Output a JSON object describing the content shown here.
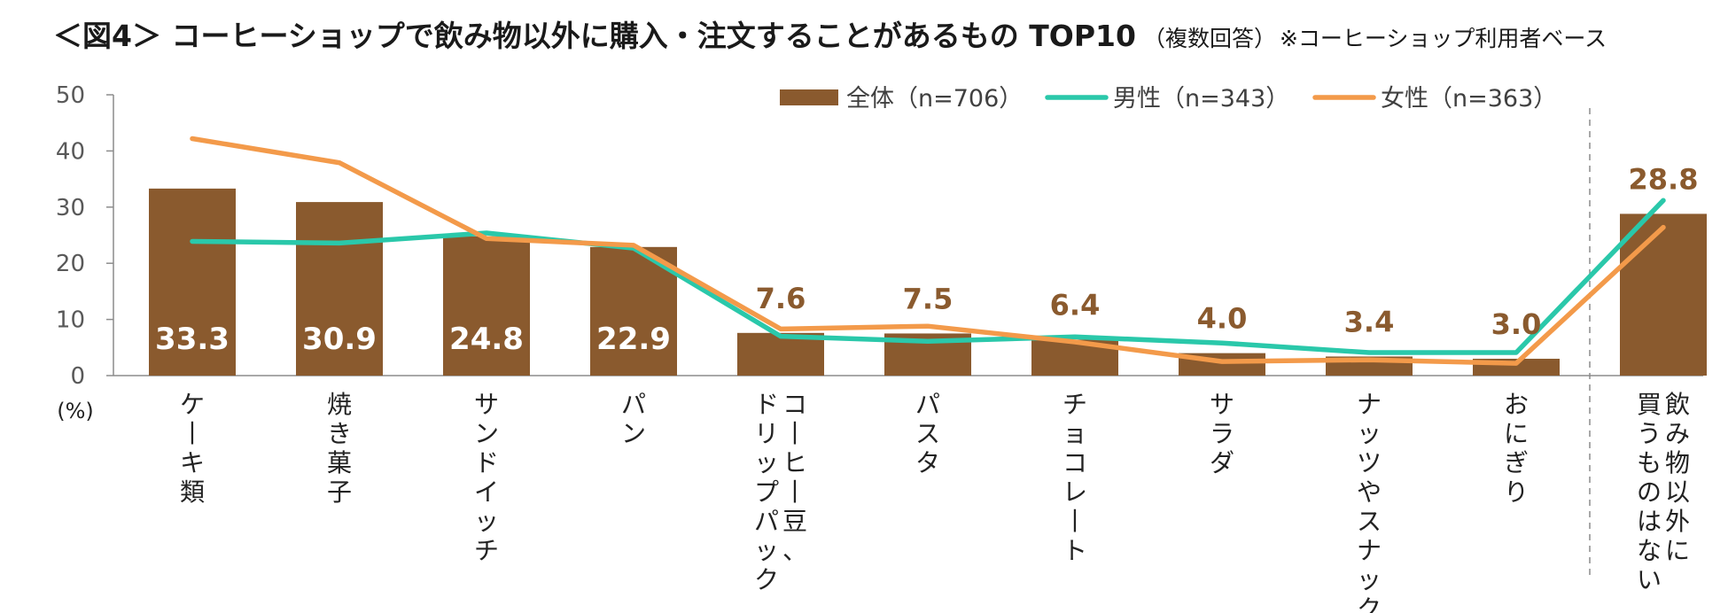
{
  "title": {
    "main": "＜図4＞ コーヒーショップで飲み物以外に購入・注文することがあるもの TOP10",
    "sub": "（複数回答）",
    "note": "※コーヒーショップ利用者ベース"
  },
  "colors": {
    "bar": "#8a5a2e",
    "male": "#2ac8aa",
    "female": "#f39a4a",
    "axis": "#8c8c8c"
  },
  "chart_data": {
    "type": "bar",
    "title": "＜図4＞ コーヒーショップで飲み物以外に購入・注文することがあるもの TOP10",
    "ylabel": "(%)",
    "ylim": [
      0,
      50
    ],
    "yticks": [
      0,
      10,
      20,
      30,
      40,
      50
    ],
    "categories": [
      [
        "ケーキ類"
      ],
      [
        "焼き菓子"
      ],
      [
        "サンドイッチ"
      ],
      [
        "パン"
      ],
      [
        "コーヒー豆、",
        "ドリップパック"
      ],
      [
        "パスタ"
      ],
      [
        "チョコレート"
      ],
      [
        "サラダ"
      ],
      [
        "ナッツやスナック"
      ],
      [
        "おにぎり"
      ],
      [
        "飲み物以外に",
        "買うものはない"
      ]
    ],
    "value_labels": [
      "33.3",
      "30.9",
      "24.8",
      "22.9",
      "7.6",
      "7.5",
      "6.4",
      "4.0",
      "3.4",
      "3.0",
      "28.8"
    ],
    "series": [
      {
        "name": "全体（n=706）",
        "type": "bar",
        "values": [
          33.3,
          30.9,
          24.8,
          22.9,
          7.6,
          7.5,
          6.4,
          4.0,
          3.4,
          3.0,
          28.8
        ]
      },
      {
        "name": "男性（n=343）",
        "type": "line",
        "values": [
          23.9,
          23.6,
          25.4,
          22.7,
          7.0,
          6.1,
          6.9,
          5.8,
          4.1,
          4.1,
          31.2
        ]
      },
      {
        "name": "女性（n=363）",
        "type": "line",
        "values": [
          42.2,
          37.9,
          24.4,
          23.2,
          8.3,
          8.8,
          6.0,
          2.5,
          2.8,
          2.2,
          26.4
        ]
      }
    ],
    "legend_position": "top-right",
    "divider_before_last": true
  }
}
